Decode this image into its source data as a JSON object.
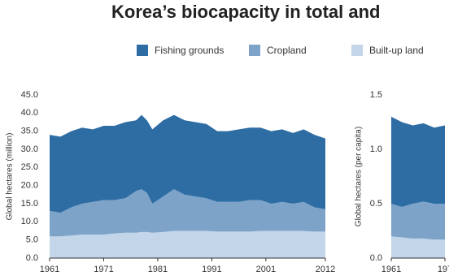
{
  "chart_data": [
    {
      "type": "area",
      "title": "Korea’s biocapacity in total and",
      "ylabel": "Global hectares (million)",
      "x": [
        1961,
        1963,
        1965,
        1967,
        1969,
        1971,
        1973,
        1975,
        1977,
        1978,
        1979,
        1980,
        1982,
        1984,
        1986,
        1988,
        1990,
        1992,
        1994,
        1996,
        1998,
        2000,
        2002,
        2004,
        2006,
        2008,
        2010,
        2012
      ],
      "series": [
        {
          "name": "Fishing grounds",
          "color": "#2e6da4",
          "values": [
            21,
            21,
            21,
            21,
            20,
            20.5,
            20.5,
            21,
            19.5,
            20.5,
            20,
            20.5,
            21,
            20.5,
            20.5,
            20.5,
            20.5,
            19.5,
            19.5,
            20,
            20,
            20,
            20,
            20,
            19.5,
            20,
            20,
            19.5
          ]
        },
        {
          "name": "Cropland",
          "color": "#7da3c9",
          "values": [
            7,
            6.5,
            7.8,
            8.5,
            9,
            9.5,
            9.2,
            9.5,
            11.5,
            11.8,
            10.8,
            8,
            9.8,
            11.5,
            10,
            9.5,
            9,
            8.2,
            8.2,
            8.2,
            8.7,
            8.5,
            7.5,
            8,
            7.5,
            8,
            6.7,
            6.2
          ]
        },
        {
          "name": "Built-up land",
          "color": "#c3d5e8",
          "values": [
            6,
            6,
            6.2,
            6.5,
            6.5,
            6.5,
            6.8,
            7,
            7,
            7.2,
            7.2,
            7,
            7.2,
            7.5,
            7.5,
            7.5,
            7.5,
            7.3,
            7.3,
            7.3,
            7.3,
            7.5,
            7.5,
            7.5,
            7.5,
            7.5,
            7.3,
            7.3
          ]
        }
      ],
      "stacked": true,
      "xlim": [
        1961,
        2012
      ],
      "xticks": [
        1961,
        1971,
        1981,
        1991,
        2001,
        2012
      ],
      "ylim": [
        0,
        45
      ],
      "yticks": [
        {
          "value": 0,
          "label": "0.0"
        },
        {
          "value": 5,
          "label": "5.0"
        },
        {
          "value": 10,
          "label": "10.0"
        },
        {
          "value": 15,
          "label": "15.0"
        },
        {
          "value": 20,
          "label": "20.0"
        },
        {
          "value": 25,
          "label": "25.0"
        },
        {
          "value": 30,
          "label": "30.0"
        },
        {
          "value": 35,
          "label": "35.0"
        },
        {
          "value": 40,
          "label": "40.0"
        },
        {
          "value": 45,
          "label": "45.0"
        }
      ]
    },
    {
      "type": "area",
      "ylabel": "Global hectares (per capita)",
      "x": [
        1961,
        1963,
        1965,
        1967,
        1969,
        1971
      ],
      "series": [
        {
          "color": "#2e6da4",
          "values": [
            0.8,
            0.78,
            0.72,
            0.72,
            0.7,
            0.72
          ]
        },
        {
          "color": "#7da3c9",
          "values": [
            0.3,
            0.28,
            0.32,
            0.34,
            0.33,
            0.33
          ]
        },
        {
          "color": "#c3d5e8",
          "values": [
            0.2,
            0.19,
            0.18,
            0.18,
            0.17,
            0.17
          ]
        }
      ],
      "stacked": true,
      "xlim": [
        1961,
        1971
      ],
      "xticks": [
        1961,
        {
          "value": 1971,
          "label": "197"
        }
      ],
      "ylim": [
        0,
        1.5
      ],
      "yticks": [
        {
          "value": 0,
          "label": "0.0"
        },
        {
          "value": 0.5,
          "label": "0.5"
        },
        {
          "value": 1,
          "label": "1.0"
        },
        {
          "value": 1.5,
          "label": "1.5"
        }
      ]
    }
  ]
}
